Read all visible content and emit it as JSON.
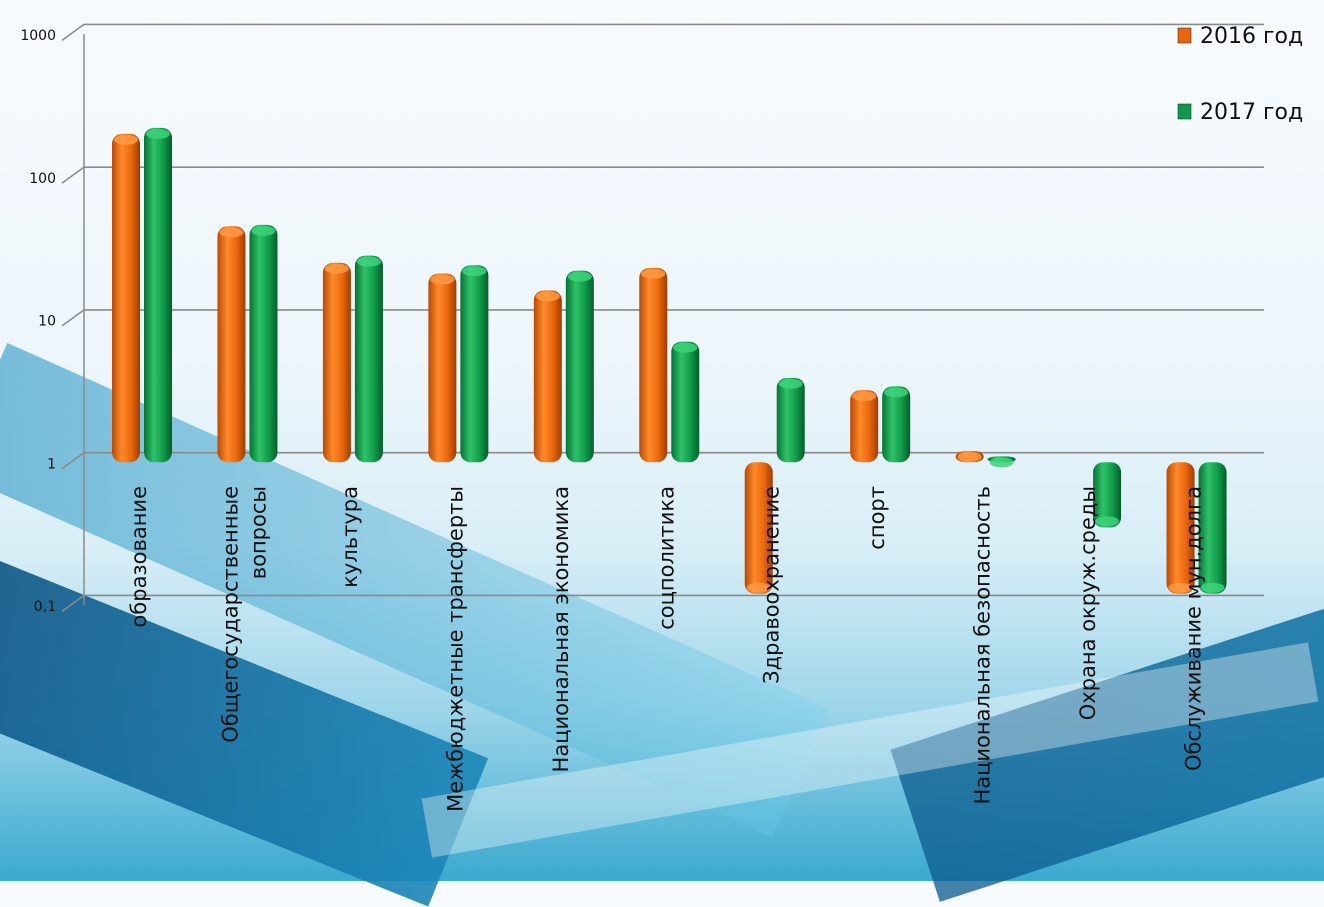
{
  "chart_data": {
    "type": "bar",
    "yscale": "log",
    "ylim": [
      0.1,
      1000
    ],
    "yticks": [
      "0,1",
      "1",
      "10",
      "100",
      "1000"
    ],
    "grid": true,
    "legend_position": "top-right",
    "categories": [
      [
        "образование"
      ],
      [
        "Общегосударственные",
        "вопросы"
      ],
      [
        "культура"
      ],
      [
        "Межбюджетные трансферты"
      ],
      [
        "Национальная экономика"
      ],
      [
        "соцполитика"
      ],
      [
        "Здравоохранение"
      ],
      [
        "спорт"
      ],
      [
        "Национальная безопасность"
      ],
      [
        "Охрана окруж.среды"
      ],
      [
        "Обслуживание мун.долга"
      ]
    ],
    "series": [
      {
        "name": "2016 год",
        "color": "#e8660c",
        "values": [
          200,
          45,
          25,
          21,
          16,
          23,
          0.12,
          3.2,
          1.2,
          null,
          0.12
        ]
      },
      {
        "name": "2017 год",
        "color": "#109a48",
        "values": [
          220,
          46,
          28,
          24,
          22,
          7,
          3.9,
          3.4,
          1.1,
          0.35,
          0.12
        ]
      }
    ]
  }
}
